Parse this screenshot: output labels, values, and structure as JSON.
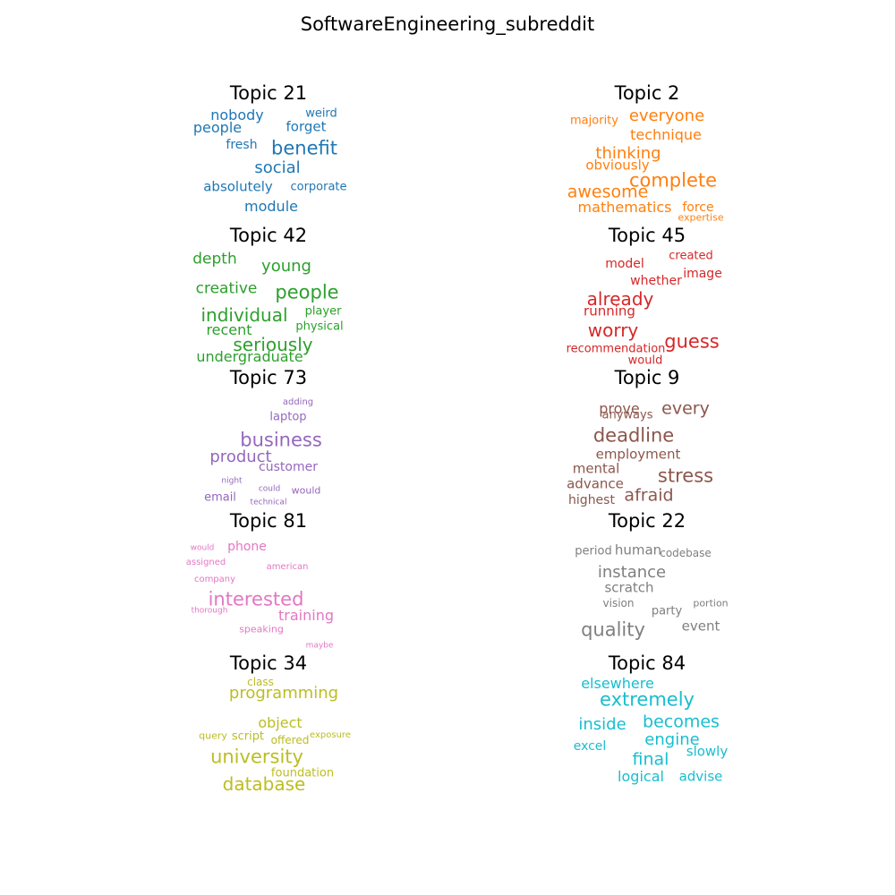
{
  "chart_data": {
    "type": "wordcloud",
    "title": "SoftwareEngineering_subreddit",
    "panels": [
      {
        "title": "Topic 21",
        "color": "#1f77b4",
        "words": [
          "nobody",
          "weird",
          "people",
          "forget",
          "fresh",
          "benefit",
          "social",
          "absolutely",
          "corporate",
          "module"
        ]
      },
      {
        "title": "Topic 2",
        "color": "#ff7f0e",
        "words": [
          "majority",
          "everyone",
          "technique",
          "thinking",
          "obviously",
          "complete",
          "awesome",
          "mathematics",
          "force",
          "expertise"
        ]
      },
      {
        "title": "Topic 42",
        "color": "#2ca02c",
        "words": [
          "depth",
          "young",
          "creative",
          "people",
          "individual",
          "player",
          "physical",
          "recent",
          "seriously",
          "undergraduate"
        ]
      },
      {
        "title": "Topic 45",
        "color": "#d62728",
        "words": [
          "model",
          "created",
          "image",
          "whether",
          "already",
          "running",
          "worry",
          "guess",
          "recommendation",
          "would"
        ]
      },
      {
        "title": "Topic 73",
        "color": "#9467bd",
        "words": [
          "adding",
          "laptop",
          "business",
          "product",
          "customer",
          "night",
          "could",
          "would",
          "email",
          "technical"
        ]
      },
      {
        "title": "Topic 9",
        "color": "#8c564b",
        "words": [
          "prove",
          "every",
          "anyways",
          "deadline",
          "employment",
          "mental",
          "stress",
          "advance",
          "afraid",
          "highest"
        ]
      },
      {
        "title": "Topic 81",
        "color": "#e377c2",
        "words": [
          "would",
          "phone",
          "assigned",
          "american",
          "company",
          "interested",
          "thorough",
          "training",
          "speaking",
          "maybe"
        ]
      },
      {
        "title": "Topic 22",
        "color": "#7f7f7f",
        "words": [
          "period",
          "human",
          "codebase",
          "instance",
          "scratch",
          "vision",
          "portion",
          "party",
          "event",
          "quality"
        ]
      },
      {
        "title": "Topic 34",
        "color": "#bcbd22",
        "words": [
          "class",
          "programming",
          "object",
          "query",
          "script",
          "offered",
          "exposure",
          "university",
          "foundation",
          "database"
        ]
      },
      {
        "title": "Topic 84",
        "color": "#17becf",
        "words": [
          "elsewhere",
          "extremely",
          "inside",
          "becomes",
          "engine",
          "excel",
          "slowly",
          "final",
          "logical",
          "advise"
        ]
      }
    ]
  }
}
